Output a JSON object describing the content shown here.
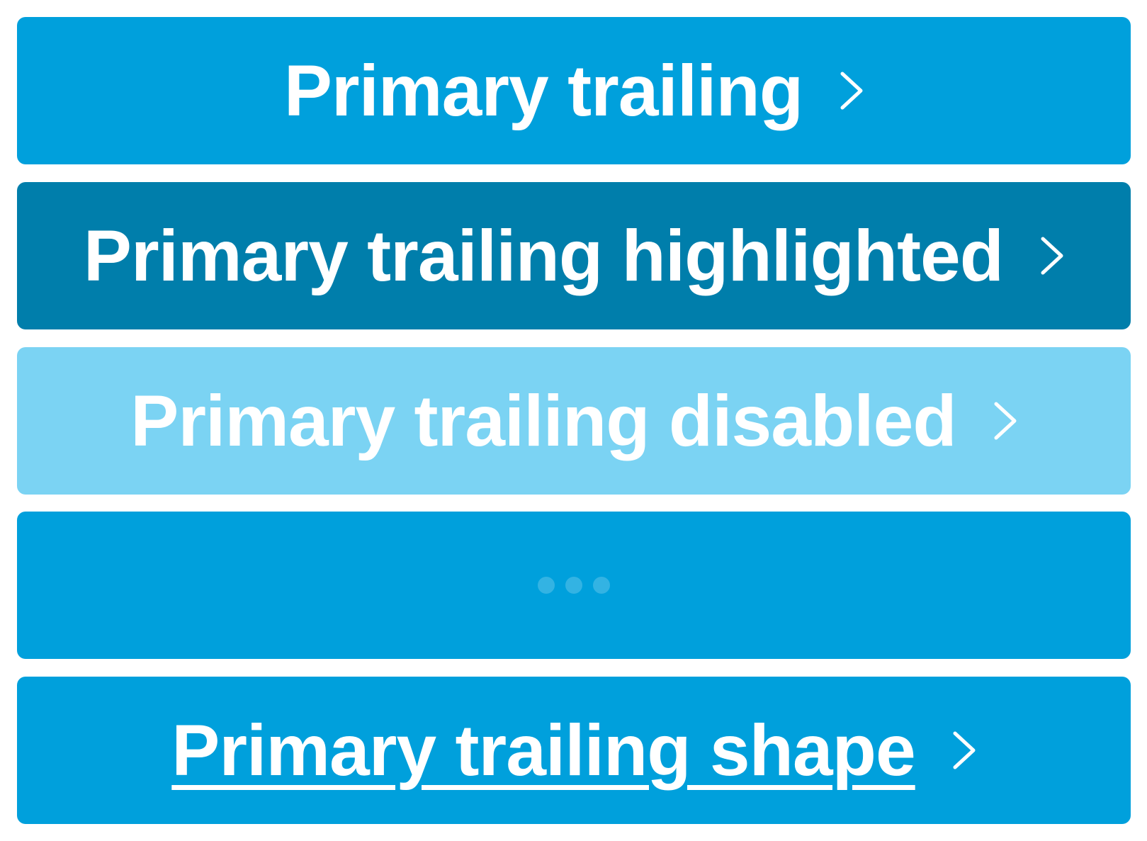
{
  "colors": {
    "primary": "#00A0DC",
    "highlighted": "#007EAB",
    "disabled": "#7BD3F3",
    "text": "#FFFFFF",
    "loading_dot": "#33B3E3"
  },
  "buttons": [
    {
      "label": "Primary trailing",
      "state": "default",
      "trailing_icon": "chevron-right-icon"
    },
    {
      "label": "Primary trailing highlighted",
      "state": "highlighted",
      "trailing_icon": "chevron-right-icon"
    },
    {
      "label": "Primary trailing disabled",
      "state": "disabled",
      "trailing_icon": "chevron-right-icon"
    },
    {
      "label": "",
      "state": "loading",
      "trailing_icon": "loading-dots-icon"
    },
    {
      "label": "Primary trailing shape",
      "state": "shape",
      "trailing_icon": "chevron-right-icon"
    }
  ]
}
